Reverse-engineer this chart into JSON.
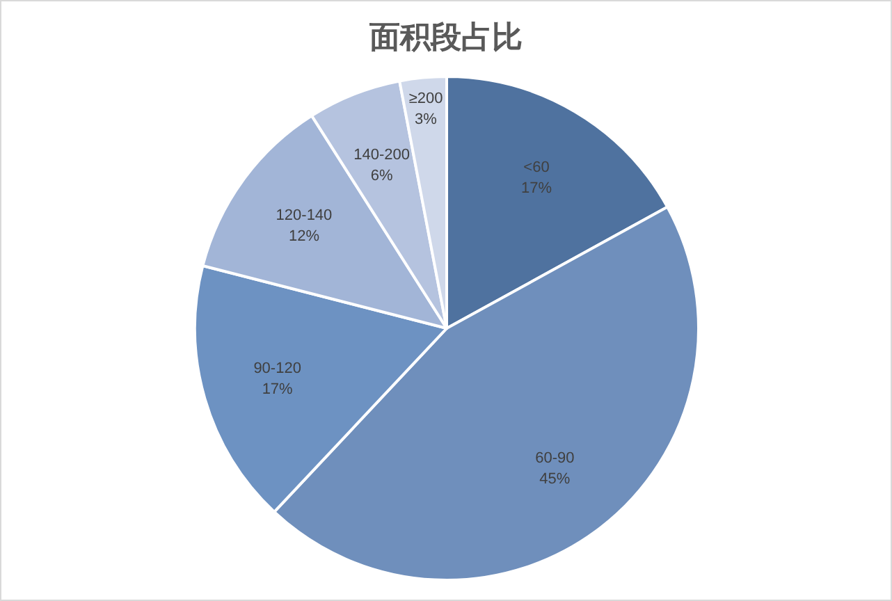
{
  "chart_data": {
    "type": "pie",
    "title": "面积段占比",
    "categories": [
      "<60",
      "60-90",
      "90-120",
      "120-140",
      "140-200",
      "≥200"
    ],
    "values": [
      17,
      45,
      17,
      12,
      6,
      3
    ],
    "colors": [
      "#4f729f",
      "#6f8fbc",
      "#6d92c2",
      "#a2b5d7",
      "#b5c3df",
      "#cfd8ea"
    ],
    "value_labels": [
      "17%",
      "45%",
      "17%",
      "12%",
      "6%",
      "3%"
    ]
  }
}
